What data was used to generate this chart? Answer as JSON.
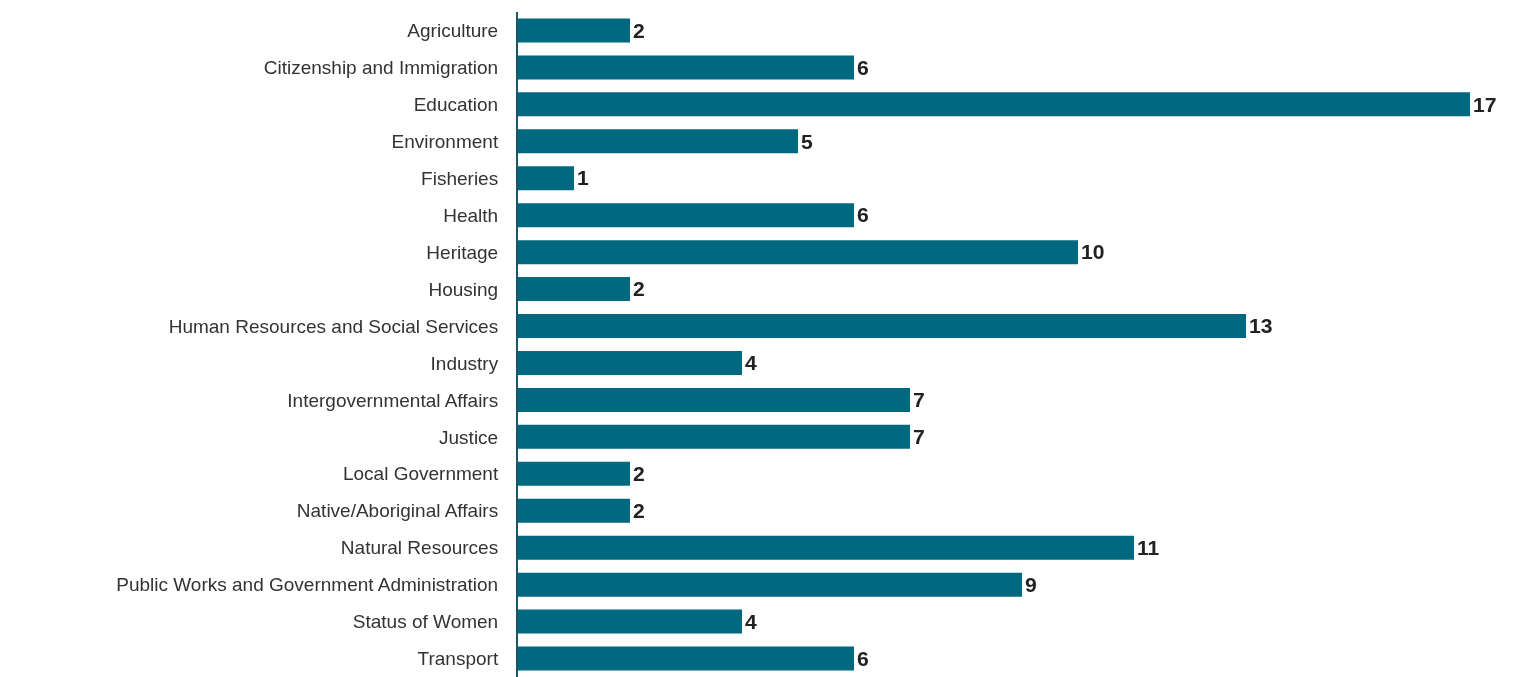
{
  "chart_data": {
    "type": "bar",
    "orientation": "horizontal",
    "categories": [
      "Agriculture",
      "Citizenship and Immigration",
      "Education",
      "Environment",
      "Fisheries",
      "Health",
      "Heritage",
      "Housing",
      "Human Resources and Social Services",
      "Industry",
      "Intergovernmental Affairs",
      "Justice",
      "Local Government",
      "Native/Aboriginal Affairs",
      "Natural Resources",
      "Public Works and Government Administration",
      "Status of Women",
      "Transport"
    ],
    "values": [
      2,
      6,
      17,
      5,
      1,
      6,
      10,
      2,
      13,
      4,
      7,
      7,
      2,
      2,
      11,
      9,
      4,
      6
    ],
    "color": "#006980",
    "xlim": [
      0,
      17
    ],
    "tick_labels": "y",
    "data_labels": true,
    "grid": false,
    "legend": false
  }
}
